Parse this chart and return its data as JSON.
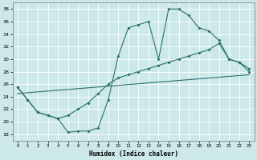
{
  "xlabel": "Humidex (Indice chaleur)",
  "xlim": [
    -0.5,
    23.5
  ],
  "ylim": [
    17,
    39
  ],
  "yticks": [
    18,
    20,
    22,
    24,
    26,
    28,
    30,
    32,
    34,
    36,
    38
  ],
  "xticks": [
    0,
    1,
    2,
    3,
    4,
    5,
    6,
    7,
    8,
    9,
    10,
    11,
    12,
    13,
    14,
    15,
    16,
    17,
    18,
    19,
    20,
    21,
    22,
    23
  ],
  "bg_color": "#cce8e8",
  "line_color": "#2a7070",
  "curve_zigzag": {
    "x": [
      0,
      1,
      2,
      3,
      4,
      5,
      6,
      7,
      8,
      9,
      10,
      11,
      12,
      13,
      14,
      15,
      16,
      17,
      18,
      19,
      20,
      21,
      22,
      23
    ],
    "y": [
      25.5,
      23.5,
      21.5,
      21.0,
      20.5,
      18.3,
      18.5,
      18.5,
      19.0,
      23.5,
      30.5,
      35.0,
      35.5,
      36.0,
      30.0,
      38.0,
      38.0,
      37.0,
      35.0,
      34.5,
      33.0,
      30.0,
      29.5,
      28.5
    ]
  },
  "curve_upper": {
    "x": [
      0,
      1,
      2,
      3,
      4,
      5,
      6,
      7,
      8,
      9,
      10,
      11,
      12,
      13,
      14,
      15,
      16,
      17,
      18,
      19,
      20,
      21,
      22,
      23
    ],
    "y": [
      25.5,
      23.5,
      21.5,
      21.0,
      20.5,
      21.0,
      22.0,
      23.0,
      24.5,
      26.0,
      27.0,
      27.5,
      28.0,
      28.5,
      29.0,
      29.5,
      30.0,
      30.5,
      31.0,
      31.5,
      32.5,
      30.0,
      29.5,
      28.0
    ]
  },
  "curve_linear": {
    "x": [
      0,
      23
    ],
    "y": [
      24.5,
      27.5
    ]
  }
}
